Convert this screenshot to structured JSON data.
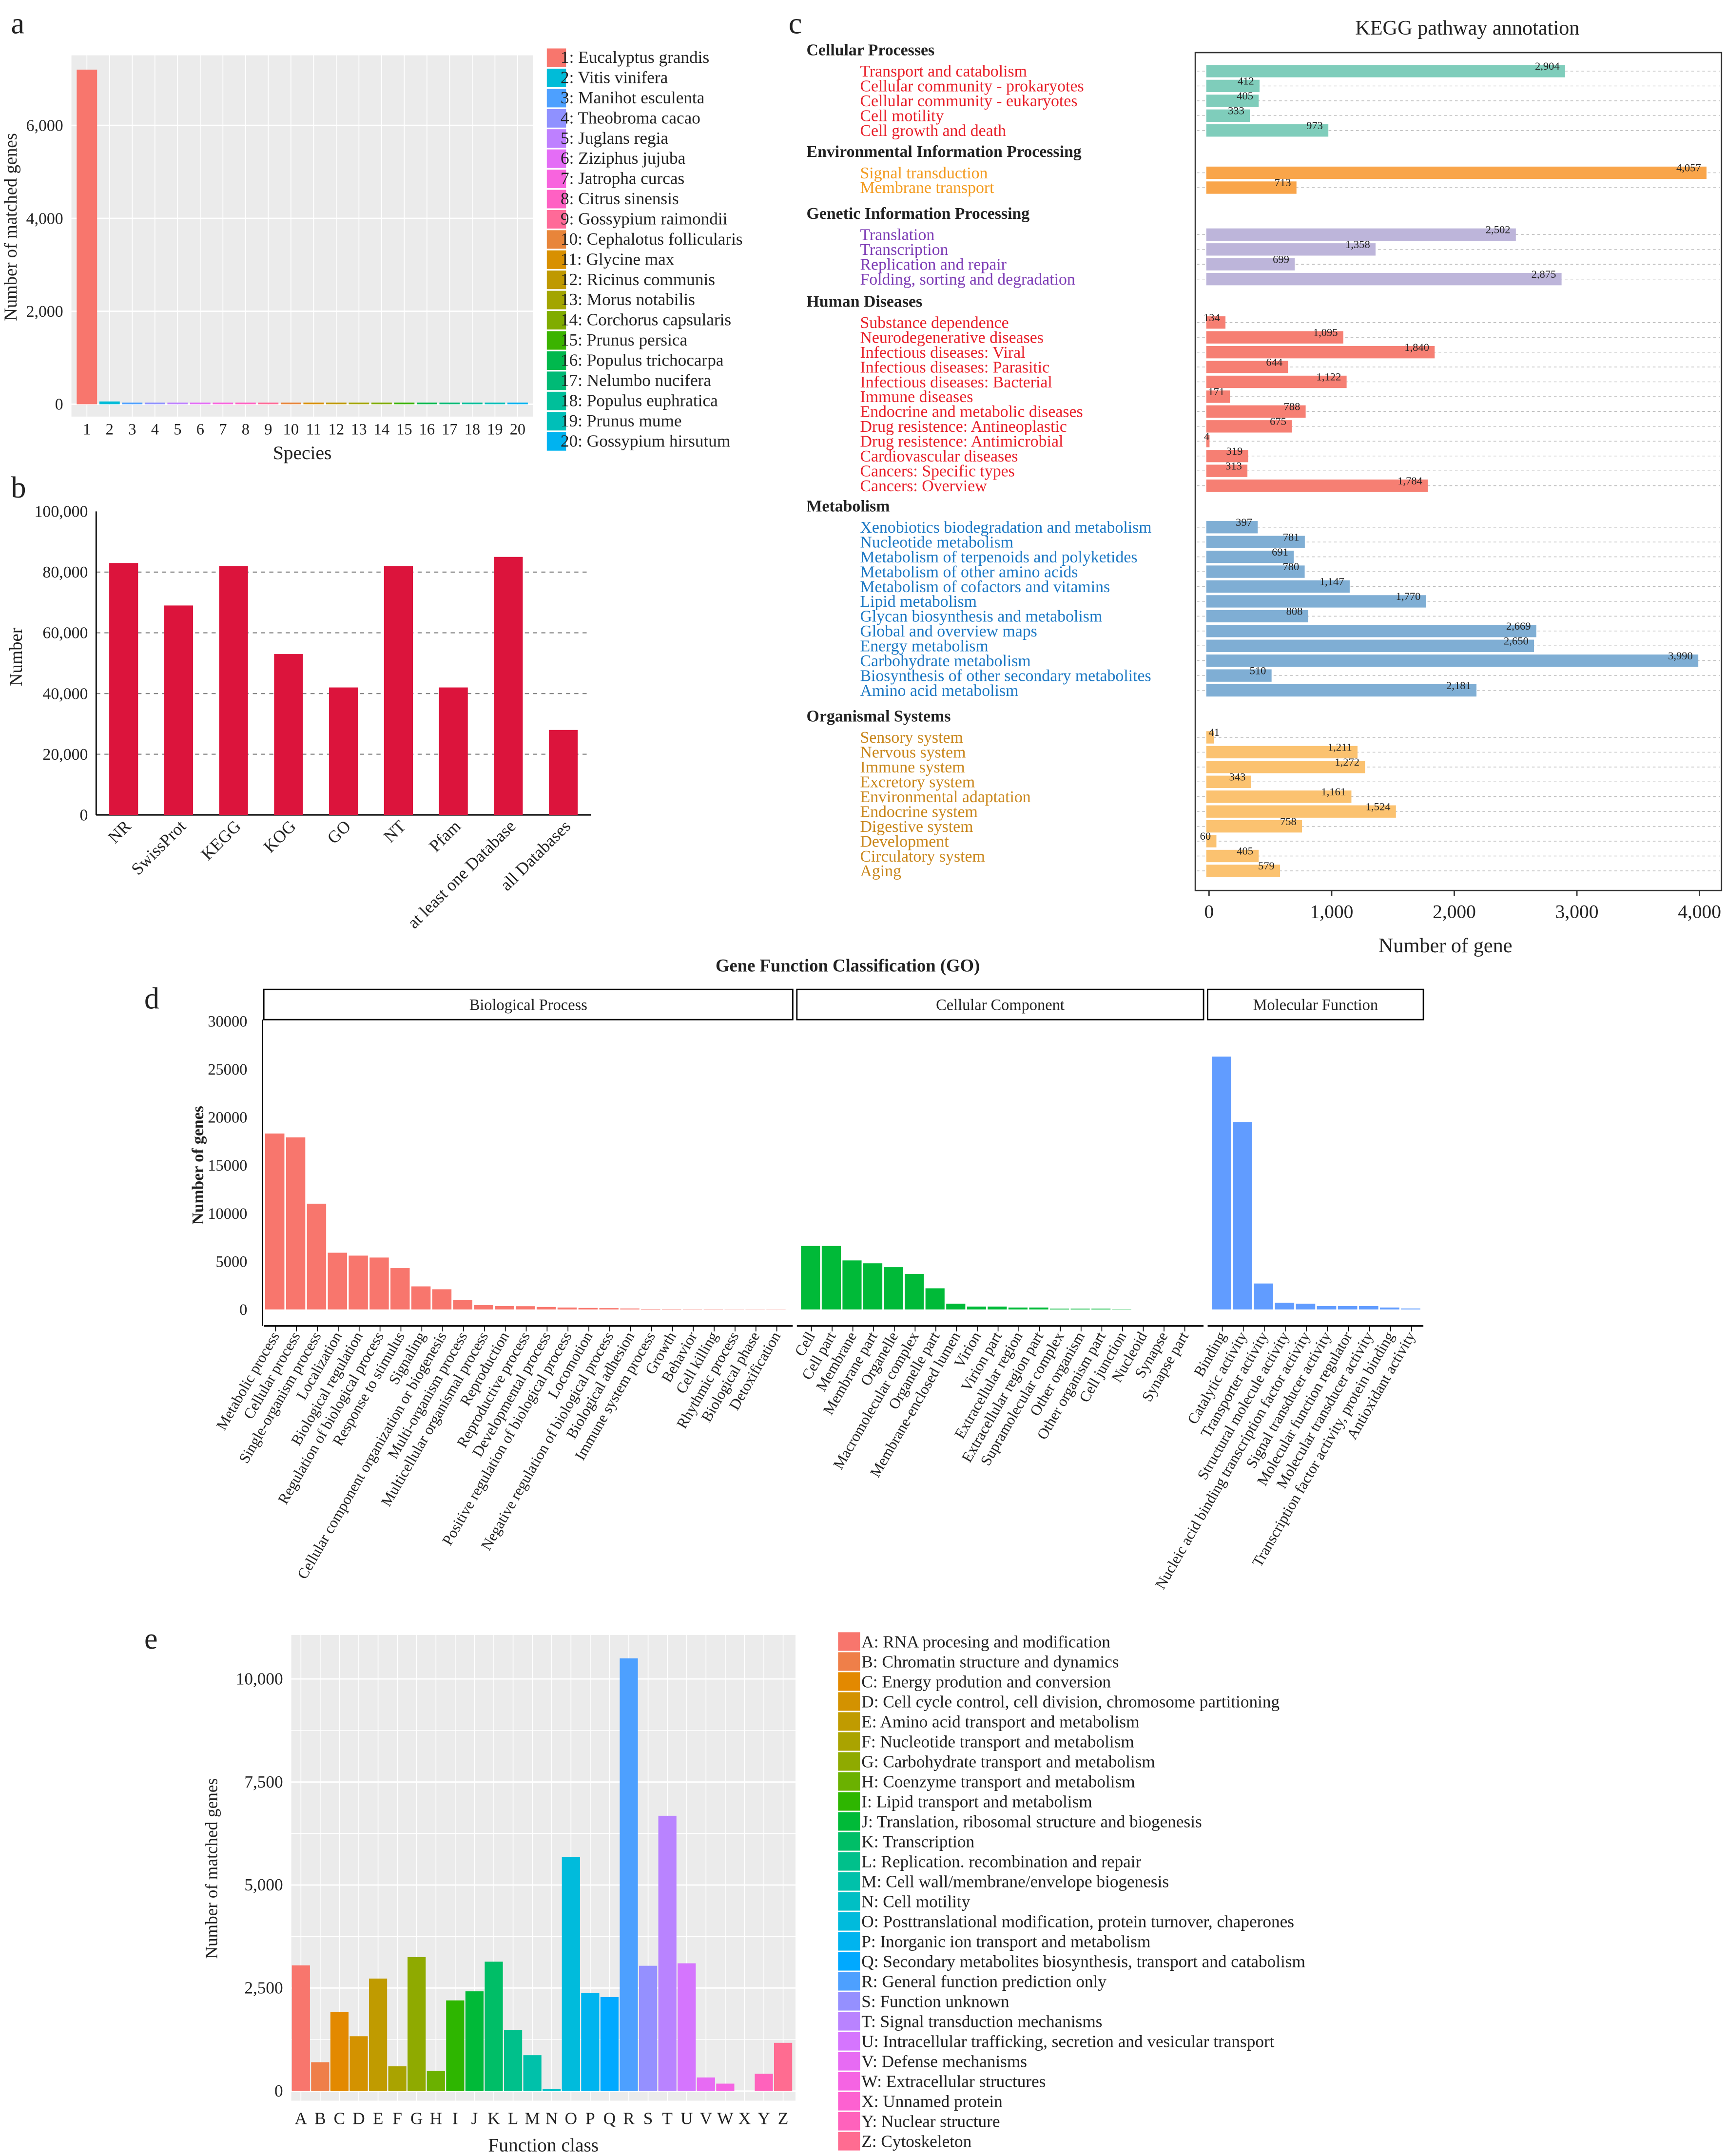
{
  "panel_labels": {
    "a": "a",
    "b": "b",
    "c": "c",
    "d": "d",
    "e": "e"
  },
  "chart_data": [
    {
      "id": "a",
      "type": "bar",
      "xlabel": "Species",
      "ylabel": "Number of matched genes",
      "categories": [
        "1",
        "2",
        "3",
        "4",
        "5",
        "6",
        "7",
        "8",
        "9",
        "10",
        "11",
        "12",
        "13",
        "14",
        "15",
        "16",
        "17",
        "18",
        "19",
        "20"
      ],
      "values": [
        7200,
        60,
        25,
        20,
        20,
        18,
        18,
        16,
        15,
        15,
        14,
        14,
        13,
        13,
        12,
        12,
        11,
        11,
        10,
        10
      ],
      "yticks": [
        "0",
        "2,000",
        "4,000",
        "6,000"
      ],
      "ytick_values": [
        0,
        2000,
        4000,
        6000
      ],
      "ylim": [
        0,
        7500
      ],
      "legend": [
        "1: Eucalyptus grandis",
        "2: Vitis vinifera",
        "3: Manihot esculenta",
        "4: Theobroma cacao",
        "5: Juglans regia",
        "6: Ziziphus jujuba",
        "7: Jatropha curcas",
        "8: Citrus sinensis",
        "9: Gossypium raimondii",
        "10: Cephalotus follicularis",
        "11: Glycine max",
        "12: Ricinus communis",
        "13: Morus notabilis",
        "14: Corchorus capsularis",
        "15: Prunus persica",
        "16: Populus trichocarpa",
        "17: Nelumbo nucifera",
        "18: Populus euphratica",
        "19: Prunus mume",
        "20: Gossypium hirsutum"
      ],
      "legend_placement": "right",
      "grid": true,
      "colors": [
        "#F8766D",
        "#00BCD8",
        "#4DA0FF",
        "#8F91FF",
        "#BE80FF",
        "#E46DF6",
        "#F864DE",
        "#FF61C3",
        "#FF6A98",
        "#E8853A",
        "#D89000",
        "#BF9900",
        "#A3A500",
        "#80AC00",
        "#3BB300",
        "#00B84D",
        "#00BA76",
        "#00BF9A",
        "#00BFB8",
        "#00B3F0"
      ]
    },
    {
      "id": "b",
      "type": "bar",
      "xlabel": "",
      "ylabel": "Number",
      "categories": [
        "NR",
        "SwissProt",
        "KEGG",
        "KOG",
        "GO",
        "NT",
        "Pfam",
        "at least one Database",
        "all Databases"
      ],
      "values": [
        83000,
        69000,
        82000,
        53000,
        42000,
        82000,
        42000,
        85000,
        28000
      ],
      "yticks": [
        "0",
        "20,000",
        "40,000",
        "60,000",
        "80,000",
        "100,000"
      ],
      "ytick_values": [
        0,
        20000,
        40000,
        60000,
        80000,
        100000
      ],
      "ylim": [
        0,
        100000
      ],
      "grid": "dashed horizontal",
      "color": "#DC143C"
    },
    {
      "id": "c",
      "type": "bar",
      "orientation": "horizontal",
      "title": "KEGG pathway annotation",
      "xlabel": "Number of gene",
      "xticks": [
        "0",
        "1,000",
        "2,000",
        "3,000",
        "4,000"
      ],
      "xtick_values": [
        0,
        1000,
        2000,
        3000,
        4000
      ],
      "xlim": [
        0,
        4050
      ],
      "groups": [
        {
          "name": "Cellular Processes",
          "bar_color": "#7FCDBB",
          "label_color": "#E8202A",
          "items": [
            [
              "Transport and catabolism",
              2904,
              "2,904"
            ],
            [
              "Cellular community - prokaryotes",
              412,
              "412"
            ],
            [
              "Cellular community - eukaryotes",
              405,
              "405"
            ],
            [
              "Cell motility",
              333,
              "333"
            ],
            [
              "Cell growth and death",
              973,
              "973"
            ]
          ]
        },
        {
          "name": "Environmental Information Processing",
          "bar_color": "#F9A54A",
          "label_color": "#F39A1E",
          "items": [
            [
              "Signal transduction",
              4057,
              "4,057"
            ],
            [
              "Membrane transport",
              713,
              "713"
            ]
          ]
        },
        {
          "name": "Genetic Information Processing",
          "bar_color": "#BDB5DA",
          "label_color": "#7D3CB5",
          "items": [
            [
              "Translation",
              2502,
              "2,502"
            ],
            [
              "Transcription",
              1358,
              "1,358"
            ],
            [
              "Replication and repair",
              699,
              "699"
            ],
            [
              "Folding, sorting and degradation",
              2875,
              "2,875"
            ]
          ]
        },
        {
          "name": "Human Diseases",
          "bar_color": "#F67F73",
          "label_color": "#E8202A",
          "items": [
            [
              "Substance dependence",
              134,
              "134"
            ],
            [
              "Neurodegenerative diseases",
              1095,
              "1,095"
            ],
            [
              "Infectious diseases: Viral",
              1840,
              "1,840"
            ],
            [
              "Infectious diseases: Parasitic",
              644,
              "644"
            ],
            [
              "Infectious diseases: Bacterial",
              1122,
              "1,122"
            ],
            [
              "Immune diseases",
              171,
              "171"
            ],
            [
              "Endocrine and metabolic diseases",
              788,
              "788"
            ],
            [
              "Drug resistence: Antineoplastic",
              675,
              "675"
            ],
            [
              "Drug resistence: Antimicrobial",
              4,
              "4"
            ],
            [
              "Cardiovascular diseases",
              319,
              "319"
            ],
            [
              "Cancers: Specific types",
              313,
              "313"
            ],
            [
              "Cancers: Overview",
              1784,
              "1,784"
            ]
          ]
        },
        {
          "name": "Metabolism",
          "bar_color": "#7FAED4",
          "label_color": "#1C78C4",
          "items": [
            [
              "Xenobiotics biodegradation and metabolism",
              397,
              "397"
            ],
            [
              "Nucleotide metabolism",
              781,
              "781"
            ],
            [
              "Metabolism of terpenoids and polyketides",
              691,
              "691"
            ],
            [
              "Metabolism of other amino acids",
              780,
              "780"
            ],
            [
              "Metabolism of cofactors and vitamins",
              1147,
              "1,147"
            ],
            [
              "Lipid metabolism",
              1770,
              "1,770"
            ],
            [
              "Glycan biosynthesis and metabolism",
              808,
              "808"
            ],
            [
              "Global and overview maps",
              2669,
              "2,669"
            ],
            [
              "Energy metabolism",
              2650,
              "2,650"
            ],
            [
              "Carbohydrate metabolism",
              3990,
              "3,990"
            ],
            [
              "Biosynthesis of other secondary metabolites",
              510,
              "510"
            ],
            [
              "Amino acid metabolism",
              2181,
              "2,181"
            ]
          ]
        },
        {
          "name": "Organismal Systems",
          "bar_color": "#FBC270",
          "label_color": "#C9861B",
          "items": [
            [
              "Sensory system",
              41,
              "41"
            ],
            [
              "Nervous system",
              1211,
              "1,211"
            ],
            [
              "Immune system",
              1272,
              "1,272"
            ],
            [
              "Excretory system",
              343,
              "343"
            ],
            [
              "Environmental adaptation",
              1161,
              "1,161"
            ],
            [
              "Endocrine system",
              1524,
              "1,524"
            ],
            [
              "Digestive system",
              758,
              "758"
            ],
            [
              "Development",
              60,
              "60"
            ],
            [
              "Circulatory system",
              405,
              "405"
            ],
            [
              "Aging",
              579,
              "579"
            ]
          ]
        }
      ]
    },
    {
      "id": "d",
      "type": "bar",
      "title": "Gene Function Classification (GO)",
      "ylabel": "Number of genes",
      "yticks": [
        "0",
        "5000",
        "10000",
        "15000",
        "20000",
        "25000",
        "30000"
      ],
      "ytick_values": [
        0,
        5000,
        10000,
        15000,
        20000,
        25000,
        30000
      ],
      "ylim": [
        0,
        30000
      ],
      "facets": [
        {
          "name": "Biological Process",
          "color": "#F8766D",
          "categories": [
            "Metabolic process",
            "Cellular process",
            "Single-organism process",
            "Localization",
            "Biological regulation",
            "Regulation of biological process",
            "Response to stimulus",
            "Signaling",
            "Cellular component organization or biogenesis",
            "Multi-organism process",
            "Multicellular organismal process",
            "Reproduction",
            "Reproductive process",
            "Developmental process",
            "Positive regulation of biological process",
            "Locomotion",
            "Negative regulation of biological process",
            "Biological adhesion",
            "Immune system process",
            "Growth",
            "Behavior",
            "Cell killing",
            "Rhythmic process",
            "Biological phase",
            "Detoxification"
          ],
          "values": [
            18300,
            17900,
            11000,
            5900,
            5600,
            5400,
            4300,
            2400,
            2100,
            1000,
            450,
            350,
            340,
            260,
            200,
            160,
            140,
            100,
            50,
            40,
            30,
            30,
            20,
            20,
            20
          ]
        },
        {
          "name": "Cellular Component",
          "color": "#00BA38",
          "categories": [
            "Cell",
            "Cell part",
            "Membrane",
            "Membrane part",
            "Organelle",
            "Macromolecular complex",
            "Organelle part",
            "Membrane-enclosed lumen",
            "Virion",
            "Virion part",
            "Extracellular region",
            "Extracellular region part",
            "Supramolecular complex",
            "Other organism",
            "Other organism part",
            "Cell junction",
            "Nucleoid",
            "Synapse",
            "Synapse part"
          ],
          "values": [
            6600,
            6600,
            5100,
            4800,
            4400,
            3700,
            2200,
            600,
            300,
            300,
            200,
            200,
            80,
            80,
            80,
            30,
            0,
            0,
            0
          ]
        },
        {
          "name": "Molecular Function",
          "color": "#619CFF",
          "categories": [
            "Binding",
            "Catalytic activity",
            "Transporter activity",
            "Structural molecule activity",
            "Nucleic acid binding transcription factor activity",
            "Signal transducer activity",
            "Molecular function regulator",
            "Molecular transducer activity",
            "Transcription factor activity, protein binding",
            "Antioxidant activity"
          ],
          "values": [
            26300,
            19500,
            2700,
            700,
            600,
            350,
            350,
            350,
            200,
            100
          ]
        }
      ]
    },
    {
      "id": "e",
      "type": "bar",
      "xlabel": "Function class",
      "ylabel": "Number of matched genes",
      "categories": [
        "A",
        "B",
        "C",
        "D",
        "E",
        "F",
        "G",
        "H",
        "I",
        "J",
        "K",
        "L",
        "M",
        "N",
        "O",
        "P",
        "Q",
        "R",
        "S",
        "T",
        "U",
        "V",
        "W",
        "X",
        "Y",
        "Z"
      ],
      "values": [
        3050,
        700,
        1920,
        1330,
        2730,
        600,
        3250,
        490,
        2200,
        2420,
        3140,
        1480,
        870,
        50,
        5680,
        2380,
        2280,
        10500,
        3040,
        6680,
        3100,
        330,
        180,
        0,
        420,
        1170
      ],
      "yticks": [
        "0",
        "2,500",
        "5,000",
        "7,500",
        "10,000"
      ],
      "ytick_values": [
        0,
        2500,
        5000,
        7500,
        10000
      ],
      "ylim": [
        0,
        11000
      ],
      "grid": true,
      "legend_placement": "right",
      "legend": [
        "A: RNA procesing and modification",
        "B: Chromatin  structure and dynamics",
        "C: Energy prodution and conversion",
        "D: Cell cycle control, cell division, chromosome partitioning",
        "E: Amino acid transport and metabolism",
        "F: Nucleotide transport and metabolism",
        "G: Carbohydrate transport and metabolism",
        "H: Coenzyme transport and metabolism",
        "I: Lipid transport and metabolism",
        "J: Translation, ribosomal structure and biogenesis",
        "K: Transcription",
        "L: Replication. recombination and repair",
        "M: Cell wall/membrane/envelope biogenesis",
        "N: Cell motility",
        "O: Posttranslational modification, protein turnover, chaperones",
        "P: Inorganic ion transport and metabolism",
        "Q: Secondary metabolites biosynthesis, transport and catabolism",
        "R: General function prediction only",
        "S: Function unknown",
        "T: Signal transduction mechanisms",
        "U: Intracellular trafficking, secretion and vesicular transport",
        "V: Defense mechanisms",
        "W: Extracellular structures",
        "X: Unnamed protein",
        "Y: Nuclear structure",
        "Z: Cytoskeleton"
      ],
      "colors": [
        "#F8766D",
        "#EF7F49",
        "#E38900",
        "#D39200",
        "#C09B00",
        "#AAA300",
        "#8FAA00",
        "#6BB100",
        "#2EB600",
        "#00BA38",
        "#00BE67",
        "#00C08B",
        "#00C1AA",
        "#00BFC4",
        "#00BBDC",
        "#00B4EF",
        "#00A9FF",
        "#4DA0FF",
        "#9590FF",
        "#B983FF",
        "#D575FE",
        "#E76BF3",
        "#F564E3",
        "#FD61D1",
        "#FF62BC",
        "#FF6C91"
      ]
    }
  ]
}
